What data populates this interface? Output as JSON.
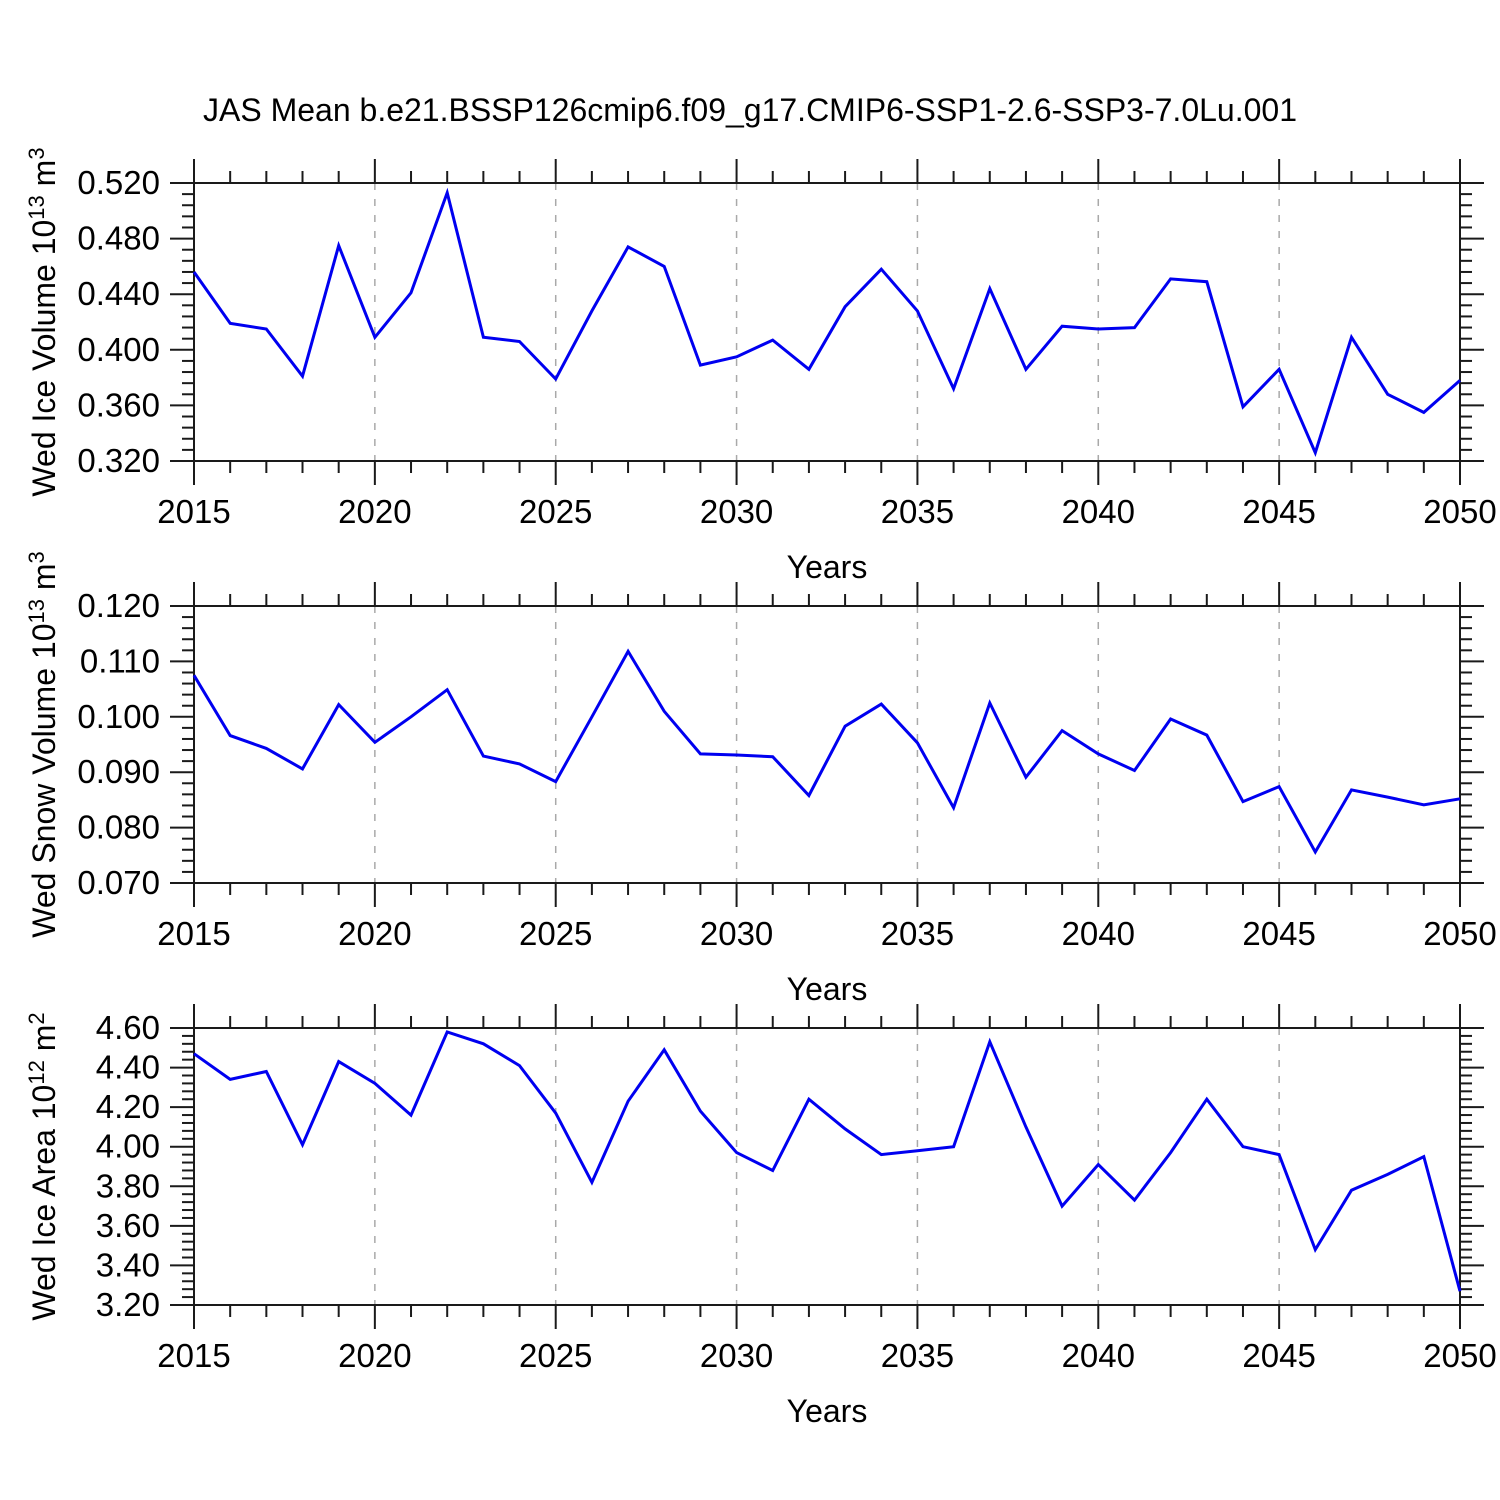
{
  "title": "JAS Mean b.e21.BSSP126cmip6.f09_g17.CMIP6-SSP1-2.6-SSP3-7.0Lu.001",
  "colors": {
    "line": "#0000f0",
    "axis": "#1a1a1a",
    "grid": "#a9a9a9",
    "background": "#ffffff",
    "text": "#000000"
  },
  "x_axis": {
    "label": "Years",
    "min": 2015,
    "max": 2050,
    "major_ticks": [
      2015,
      2020,
      2025,
      2030,
      2035,
      2040,
      2045,
      2050
    ],
    "tick_labels": [
      "2015",
      "2020",
      "2025",
      "2030",
      "2035",
      "2040",
      "2045",
      "2050"
    ],
    "minor_step": 1,
    "dashed_grid_years": [
      2020,
      2025,
      2030,
      2035,
      2040,
      2045
    ]
  },
  "years": [
    2015,
    2016,
    2017,
    2018,
    2019,
    2020,
    2021,
    2022,
    2023,
    2024,
    2025,
    2026,
    2027,
    2028,
    2029,
    2030,
    2031,
    2032,
    2033,
    2034,
    2035,
    2036,
    2037,
    2038,
    2039,
    2040,
    2041,
    2042,
    2043,
    2044,
    2045,
    2046,
    2047,
    2048,
    2049,
    2050
  ],
  "chart_data": [
    {
      "type": "line",
      "name": "wed-ice-volume",
      "title": "",
      "xlabel": "Years",
      "ylabel": {
        "prefix": "Wed Ice Volume 10",
        "exponent": "13",
        "unit": " m",
        "unit_exponent": "3"
      },
      "ylim": [
        0.32,
        0.52
      ],
      "y_major_values": [
        0.52,
        0.48,
        0.44,
        0.4,
        0.36,
        0.32
      ],
      "y_tick_labels": [
        "0.520",
        "0.480",
        "0.440",
        "0.400",
        "0.360",
        "0.320"
      ],
      "y_minor_step": 0.008,
      "grid": "vertical-dashed",
      "legend": "none",
      "values": [
        0.456,
        0.419,
        0.415,
        0.381,
        0.475,
        0.409,
        0.441,
        0.513,
        0.409,
        0.406,
        0.379,
        0.428,
        0.474,
        0.46,
        0.389,
        0.395,
        0.407,
        0.386,
        0.431,
        0.458,
        0.428,
        0.372,
        0.444,
        0.386,
        0.417,
        0.415,
        0.416,
        0.451,
        0.449,
        0.359,
        0.386,
        0.326,
        0.409,
        0.368,
        0.355,
        0.378
      ]
    },
    {
      "type": "line",
      "name": "wed-snow-volume",
      "title": "",
      "xlabel": "Years",
      "ylabel": {
        "prefix": "Wed Snow Volume 10",
        "exponent": "13",
        "unit": " m",
        "unit_exponent": "3"
      },
      "ylim": [
        0.07,
        0.12
      ],
      "y_major_values": [
        0.12,
        0.11,
        0.1,
        0.09,
        0.08,
        0.07
      ],
      "y_tick_labels": [
        "0.120",
        "0.110",
        "0.100",
        "0.090",
        "0.080",
        "0.070"
      ],
      "y_minor_step": 0.002,
      "grid": "vertical-dashed",
      "legend": "none",
      "values": [
        0.1075,
        0.0966,
        0.0943,
        0.0906,
        0.1022,
        0.0954,
        0.1,
        0.1049,
        0.0929,
        0.0915,
        0.0883,
        0.1,
        0.1118,
        0.101,
        0.0933,
        0.0931,
        0.0928,
        0.0858,
        0.0983,
        0.1023,
        0.0953,
        0.0836,
        0.1025,
        0.0891,
        0.0975,
        0.0933,
        0.0903,
        0.0996,
        0.0967,
        0.0847,
        0.0874,
        0.0756,
        0.0868,
        0.0855,
        0.0841,
        0.0852
      ]
    },
    {
      "type": "line",
      "name": "wed-ice-area",
      "title": "",
      "xlabel": "Years",
      "ylabel": {
        "prefix": "Wed Ice Area 10",
        "exponent": "12",
        "unit": " m",
        "unit_exponent": "2"
      },
      "ylim": [
        3.2,
        4.6
      ],
      "y_major_values": [
        4.6,
        4.4,
        4.2,
        4.0,
        3.8,
        3.6,
        3.4,
        3.2
      ],
      "y_tick_labels": [
        "4.60",
        "4.40",
        "4.20",
        "4.00",
        "3.80",
        "3.60",
        "3.40",
        "3.20"
      ],
      "y_minor_step": 0.04,
      "grid": "vertical-dashed",
      "legend": "none",
      "values": [
        4.47,
        4.34,
        4.38,
        4.01,
        4.43,
        4.32,
        4.16,
        4.58,
        4.52,
        4.41,
        4.17,
        3.82,
        4.23,
        4.49,
        4.18,
        3.97,
        3.88,
        4.24,
        4.09,
        3.96,
        3.98,
        4.0,
        4.53,
        4.1,
        3.7,
        3.91,
        3.73,
        3.97,
        4.24,
        4.0,
        3.96,
        3.48,
        3.78,
        3.86,
        3.95,
        3.27
      ]
    }
  ]
}
